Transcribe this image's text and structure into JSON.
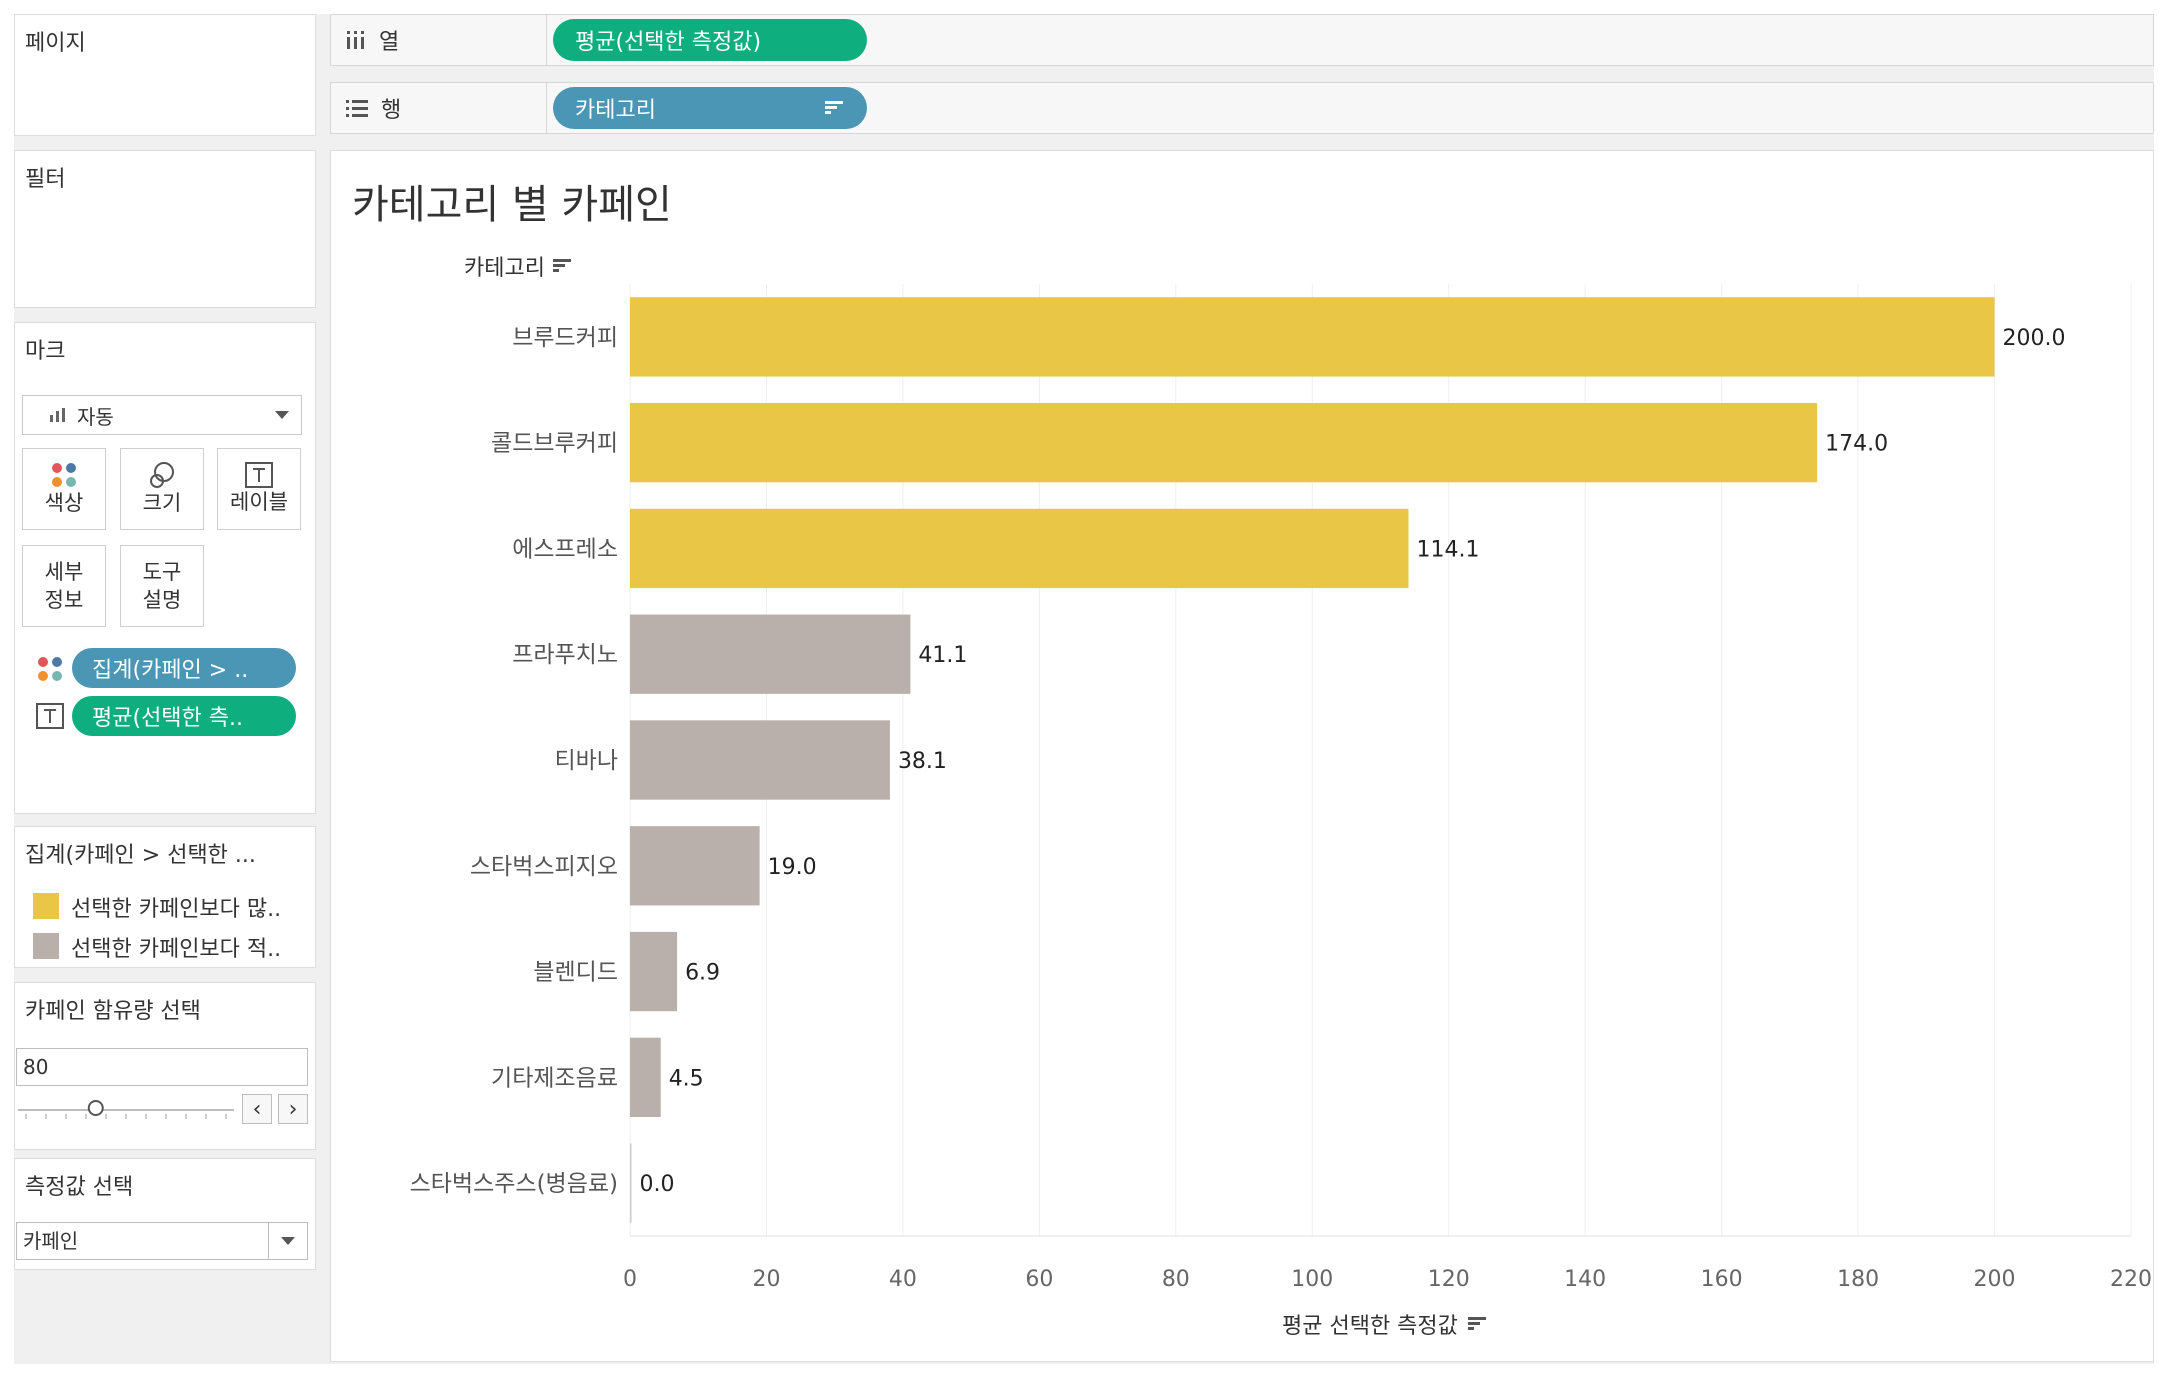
{
  "pages_panel": {
    "title": "페이지"
  },
  "filters_panel": {
    "title": "필터"
  },
  "marks_panel": {
    "title": "마크",
    "mark_type": "자동",
    "buttons": {
      "color": "색상",
      "size": "크기",
      "label": "레이블",
      "detail_line1": "세부",
      "detail_line2": "정보",
      "tooltip_line1": "도구",
      "tooltip_line2": "설명"
    },
    "color_pill": "집계(카페인 > ..",
    "label_pill": "평균(선택한 측.."
  },
  "legend": {
    "title": "집계(카페인 > 선택한 ...",
    "items": [
      {
        "label": "선택한 카페인보다 많..",
        "color": "#e9c646"
      },
      {
        "label": "선택한 카페인보다 적..",
        "color": "#bab0ab"
      }
    ]
  },
  "parameter": {
    "title": "카페인 함유량 선택",
    "value": "80",
    "slider_fraction": 0.36
  },
  "measure_select": {
    "title": "측정값 선택",
    "value": "카페인"
  },
  "shelves": {
    "columns": {
      "label": "열",
      "pill": "평균(선택한 측정값)"
    },
    "rows": {
      "label": "행",
      "pill": "카테고리"
    }
  },
  "colors": {
    "above": "#e9c646",
    "below": "#bab0ab",
    "pill_green": "#0fae7e",
    "pill_blue": "#4b96b5"
  },
  "chart_data": {
    "type": "bar",
    "orientation": "horizontal",
    "title": "카테고리 별 카페인",
    "row_header": "카테고리",
    "xlabel": "평균 선택한 측정값",
    "xlim": [
      0,
      220
    ],
    "xticks": [
      "0",
      "20",
      "40",
      "60",
      "80",
      "100",
      "120",
      "140",
      "160",
      "180",
      "200",
      "220"
    ],
    "grid": true,
    "categories": [
      "브루드커피",
      "콜드브루커피",
      "에스프레소",
      "프라푸치노",
      "티바나",
      "스타벅스피지오",
      "블렌디드",
      "기타제조음료",
      "스타벅스주스(병음료)"
    ],
    "values": [
      200.0,
      174.0,
      114.1,
      41.1,
      38.1,
      19.0,
      6.9,
      4.5,
      0.0
    ],
    "value_labels": [
      "200.0",
      "174.0",
      "114.1",
      "41.1",
      "38.1",
      "19.0",
      "6.9",
      "4.5",
      "0.0"
    ],
    "threshold": 80
  }
}
